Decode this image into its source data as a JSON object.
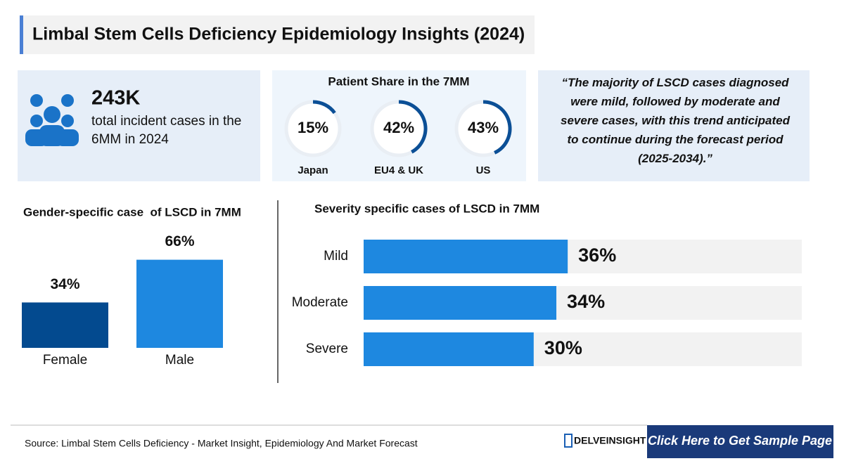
{
  "header": {
    "title": "Limbal Stem Cells Deficiency Epidemiology Insights (2024)"
  },
  "stat": {
    "value": "243K",
    "text": "total incident cases in the 6MM in 2024"
  },
  "quote": "“The majority of LSCD cases diagnosed were mild, followed by moderate and severe cases, with this trend anticipated to continue during the forecast period (2025-2034).”",
  "chart_data": [
    {
      "type": "donut",
      "title": "Patient Share in the 7MM",
      "categories": [
        "Japan",
        "EU4 & UK",
        "US"
      ],
      "values": [
        15,
        42,
        43
      ],
      "value_labels": [
        "15%",
        "42%",
        "43%"
      ],
      "color": "#0b4f96"
    },
    {
      "type": "bar",
      "title": "Gender-specific case  of LSCD in 7MM",
      "categories": [
        "Female",
        "Male"
      ],
      "values": [
        34,
        66
      ],
      "value_labels": [
        "34%",
        "66%"
      ],
      "colors": [
        "#034a8f",
        "#1e88e0"
      ]
    },
    {
      "type": "hbar",
      "title": "Severity specific cases of LSCD in 7MM",
      "categories": [
        "Mild",
        "Moderate",
        "Severe"
      ],
      "values": [
        36,
        34,
        30
      ],
      "value_labels": [
        "36%",
        "34%",
        "30%"
      ],
      "color": "#1e88e0"
    }
  ],
  "footer": {
    "source": "Source: Limbal Stem Cells Deficiency - Market Insight, Epidemiology And Market Forecast",
    "brand": "DELVEINSIGHT",
    "cta": "Click Here to Get Sample Page"
  }
}
